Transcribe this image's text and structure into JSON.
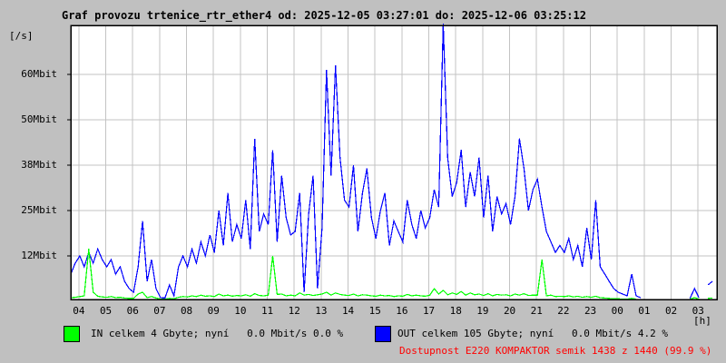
{
  "title": "Graf provozu trtenice_rtr_ether4 od: 2025-12-05 03:27:01 do: 2025-12-06 03:25:12",
  "colors": {
    "background": "#c0c0c0",
    "plot_background": "#ffffff",
    "grid": "#c3c3c3",
    "border": "#000000",
    "out_line": "#0000ff",
    "in_line": "#00ff00",
    "availability_text": "#ff0000"
  },
  "legend": {
    "items": [
      {
        "name": "IN",
        "swatch_color": "#00ff00",
        "label": "IN celkem 4 Gbyte; nyní   0.0 Mbit/s 0.0 %"
      },
      {
        "name": "OUT",
        "swatch_color": "#0000ff",
        "label": "OUT celkem 105 Gbyte; nyní   0.0 Mbit/s 4.2 %"
      }
    ]
  },
  "availability": "Dostupnost E220 KOMPAKTOR semik 1438 z 1440 (99.9 %)",
  "chart_data": {
    "type": "line",
    "title": "Graf provozu trtenice_rtr_ether4",
    "time_from": "2025-12-05 03:27:01",
    "time_to": "2025-12-06 03:25:12",
    "ylabel": "[/s]",
    "xlabel": "[h]",
    "grid": true,
    "legend_position": "bottom",
    "y_tick_unit": "Mbit",
    "y_ticks": [
      {
        "label": "12Mbit",
        "value": 12
      },
      {
        "label": "25Mbit",
        "value": 25
      },
      {
        "label": "38Mbit",
        "value": 38
      },
      {
        "label": "50Mbit",
        "value": 50
      },
      {
        "label": "60Mbit",
        "value": 60
      }
    ],
    "y_map": [
      [
        0,
        330
      ],
      [
        12,
        282
      ],
      [
        25,
        232
      ],
      [
        38,
        182
      ],
      [
        50,
        132
      ],
      [
        60,
        82
      ]
    ],
    "x_ticks": [
      "04",
      "05",
      "06",
      "07",
      "08",
      "09",
      "10",
      "11",
      "12",
      "13",
      "14",
      "15",
      "16",
      "17",
      "18",
      "19",
      "20",
      "21",
      "22",
      "23",
      "00",
      "01",
      "02",
      "03"
    ],
    "x_first_tick_hour": 4,
    "x_range_hours": [
      3.7,
      27.7
    ],
    "series": [
      {
        "name": "OUT",
        "color": "#0000ff",
        "unit": "Mbit/s",
        "t0": 3.7,
        "dt": 0.166667,
        "values": [
          7,
          10,
          12,
          9,
          13,
          10,
          14,
          11,
          9,
          11,
          7,
          9,
          5,
          3,
          2,
          9,
          22,
          5,
          11,
          3,
          0.5,
          0.4,
          4,
          1,
          9,
          12,
          9,
          14,
          10,
          16,
          12,
          18,
          13,
          25,
          15,
          30,
          16,
          21,
          17,
          28,
          14,
          45,
          19,
          24,
          21,
          42,
          16,
          35,
          23,
          18,
          19,
          30,
          2,
          24,
          35,
          3,
          20,
          61,
          35,
          62,
          40,
          28,
          26,
          38,
          19,
          30,
          37,
          23,
          17,
          25,
          30,
          15,
          22,
          19,
          16,
          28,
          21,
          17,
          25,
          20,
          23,
          31,
          26,
          76,
          40,
          29,
          33,
          42,
          26,
          36,
          29,
          40,
          23,
          35,
          19,
          29,
          24,
          27,
          21,
          29,
          45,
          37,
          25,
          31,
          34,
          26,
          19,
          16,
          13,
          15,
          13,
          17,
          11,
          15,
          9,
          20,
          11,
          28,
          9,
          7,
          5,
          3,
          2,
          1.5,
          1,
          7,
          1,
          0.5,
          null,
          null,
          null,
          null,
          null,
          null,
          null,
          null,
          null,
          null,
          0.3,
          3,
          0.5,
          null,
          4,
          5
        ]
      },
      {
        "name": "IN",
        "color": "#00ff00",
        "unit": "Mbit/s",
        "t0": 3.7,
        "dt": 0.166667,
        "values": [
          0.5,
          0.6,
          0.8,
          1,
          14,
          2,
          0.9,
          0.7,
          0.6,
          0.8,
          0.5,
          0.6,
          0.4,
          0.3,
          0.3,
          1.5,
          2,
          0.5,
          0.8,
          0.4,
          0.1,
          0.1,
          0.3,
          0.2,
          0.6,
          0.8,
          0.7,
          1,
          0.8,
          1.2,
          0.9,
          1,
          0.8,
          1.5,
          1,
          1.2,
          0.9,
          1.1,
          1,
          1.3,
          0.9,
          1.6,
          1.1,
          1,
          1.2,
          12,
          1.4,
          1.5,
          1,
          1.2,
          1,
          1.8,
          1.2,
          1.4,
          1.1,
          1.3,
          1.5,
          2,
          1.2,
          1.8,
          1.4,
          1.2,
          1.1,
          1.5,
          1,
          1.3,
          1.2,
          1,
          0.9,
          1.2,
          1,
          1.1,
          0.8,
          1,
          0.9,
          1.4,
          1,
          1.2,
          1,
          0.9,
          1.2,
          3,
          1.5,
          2.5,
          1.3,
          1.8,
          1.4,
          2.2,
          1.2,
          1.8,
          1.3,
          1.5,
          1.1,
          1.6,
          1,
          1.4,
          1.2,
          1.3,
          1,
          1.5,
          1.2,
          1.6,
          1.1,
          1.2,
          1.2,
          11,
          1,
          1.2,
          0.8,
          0.9,
          0.8,
          1,
          0.7,
          0.9,
          0.6,
          0.8,
          0.6,
          0.9,
          0.5,
          0.4,
          0.3,
          0.2,
          0.2,
          0.1,
          0.1,
          0.3,
          0.1,
          null,
          null,
          null,
          null,
          null,
          null,
          null,
          null,
          null,
          null,
          null,
          0.1,
          0.5,
          0.1,
          null,
          0.3,
          0.4
        ]
      }
    ]
  }
}
